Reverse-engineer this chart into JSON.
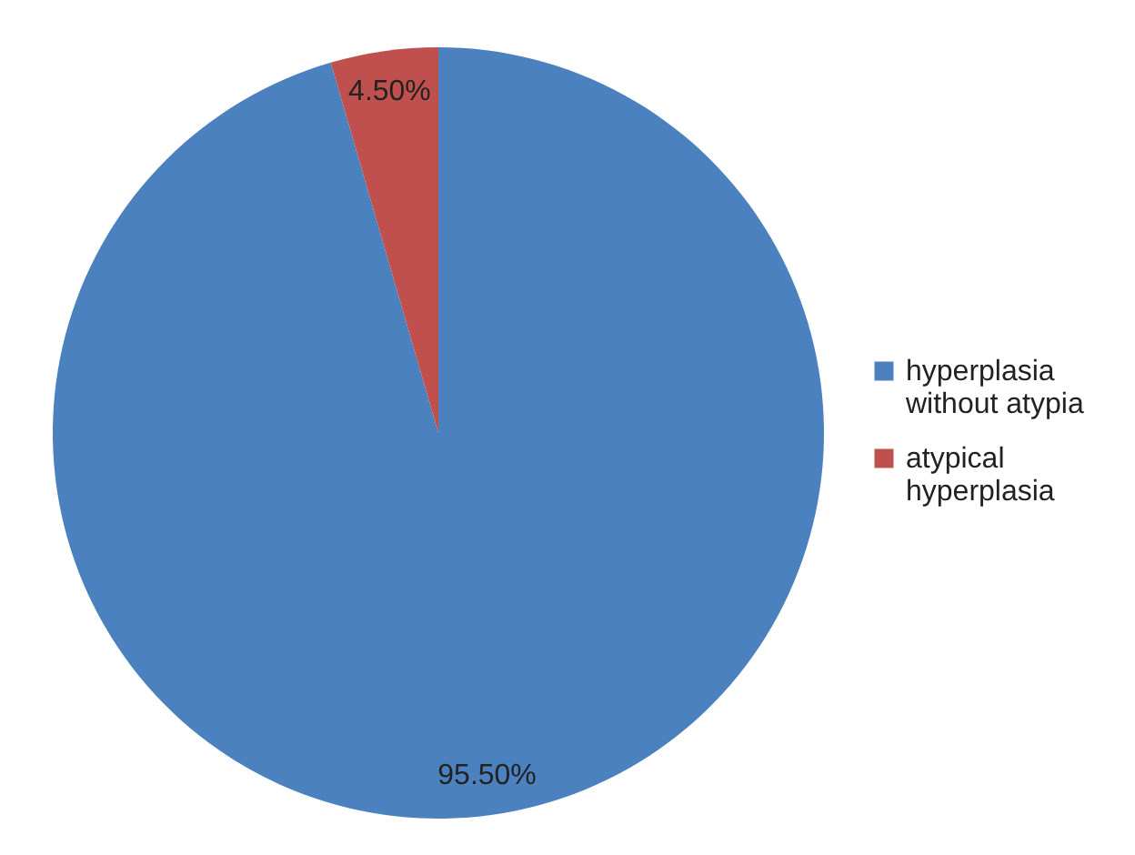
{
  "chart_data": {
    "type": "pie",
    "categories": [
      "hyperplasia without atypia",
      "atypical hyperplasia"
    ],
    "values": [
      95.5,
      4.5
    ],
    "colors": [
      "#4a81be",
      "#c0504d"
    ],
    "value_labels": [
      "95.50%",
      "4.50%"
    ],
    "legend": "right"
  }
}
